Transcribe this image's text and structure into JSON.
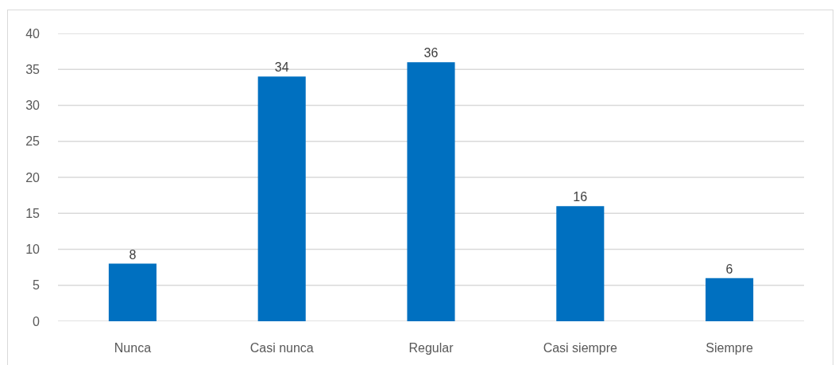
{
  "chart_data": {
    "type": "bar",
    "categories": [
      "Nunca",
      "Casi nunca",
      "Regular",
      "Casi siempre",
      "Siempre"
    ],
    "values": [
      8,
      34,
      36,
      16,
      6
    ],
    "color": "#0070c0",
    "ylim": [
      0,
      40
    ],
    "yticks": [
      0,
      5,
      10,
      15,
      20,
      25,
      30,
      35,
      40
    ],
    "grid": "y",
    "data_labels": true
  }
}
